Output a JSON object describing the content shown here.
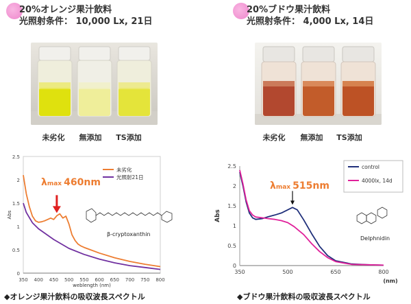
{
  "left": {
    "header_line1": "20%オレンジ果汁飲料",
    "header_line2": "光照射条件： 10,000 Lx, 21日",
    "vial_labels": [
      "未劣化",
      "無添加",
      "TS添加"
    ],
    "chart_data": {
      "type": "line",
      "xlabel": "weblength (nm)",
      "ylabel": "Abs",
      "xlim": [
        350,
        800
      ],
      "ylim": [
        0,
        2.5
      ],
      "x_ticks": [
        350,
        400,
        450,
        500,
        550,
        600,
        650,
        700,
        750,
        800
      ],
      "y_ticks": [
        0,
        0.5,
        1,
        1.5,
        2,
        2.5
      ],
      "series": [
        {
          "name": "未劣化",
          "color": "#ed7d31",
          "x": [
            350,
            360,
            370,
            380,
            390,
            400,
            410,
            420,
            430,
            440,
            450,
            460,
            470,
            480,
            490,
            500,
            510,
            520,
            530,
            540,
            550,
            600,
            650,
            700,
            750,
            800
          ],
          "y": [
            2.1,
            1.7,
            1.42,
            1.22,
            1.12,
            1.09,
            1.1,
            1.12,
            1.15,
            1.18,
            1.15,
            1.23,
            1.27,
            1.18,
            1.22,
            1.05,
            0.82,
            0.7,
            0.62,
            0.58,
            0.55,
            0.43,
            0.33,
            0.25,
            0.19,
            0.14
          ]
        },
        {
          "name": "光照射21日",
          "color": "#7030a0",
          "x": [
            350,
            360,
            380,
            400,
            450,
            500,
            550,
            600,
            650,
            700,
            750,
            800
          ],
          "y": [
            1.5,
            1.3,
            1.08,
            0.95,
            0.72,
            0.53,
            0.4,
            0.3,
            0.22,
            0.16,
            0.12,
            0.08
          ]
        }
      ],
      "annotation_lambda": "λmax",
      "annotation_value": "460nm",
      "annotation_x": 460,
      "compound": "β-cryptoxanthin"
    },
    "caption": "◆オレンジ果汁飲料の吸収波長スペクトル"
  },
  "right": {
    "header_line1": "20%ブドウ果汁飲料",
    "header_line2": "光照射条件： 4,000 Lx, 14日",
    "vial_labels": [
      "未劣化",
      "無添加",
      "TS添加"
    ],
    "chart_data": {
      "type": "line",
      "xlabel": "(nm)",
      "ylabel": "Abs",
      "xlim": [
        350,
        800
      ],
      "ylim": [
        0,
        2.5
      ],
      "x_ticks": [
        350,
        500,
        650,
        800
      ],
      "y_ticks": [
        0,
        0.5,
        1,
        1.5,
        2,
        2.5
      ],
      "series": [
        {
          "name": "control",
          "color": "#1f2f7a",
          "x": [
            350,
            360,
            370,
            380,
            390,
            400,
            420,
            440,
            460,
            480,
            500,
            515,
            530,
            550,
            575,
            600,
            625,
            650,
            700,
            750,
            800
          ],
          "y": [
            2.35,
            2.0,
            1.6,
            1.32,
            1.2,
            1.16,
            1.18,
            1.23,
            1.27,
            1.32,
            1.4,
            1.46,
            1.4,
            1.15,
            0.8,
            0.48,
            0.25,
            0.12,
            0.04,
            0.02,
            0.01
          ]
        },
        {
          "name": "4000lx, 14d",
          "color": "#e0209a",
          "x": [
            350,
            360,
            370,
            380,
            390,
            400,
            420,
            440,
            460,
            480,
            500,
            520,
            550,
            575,
            600,
            625,
            650,
            700,
            750,
            800
          ],
          "y": [
            2.4,
            2.05,
            1.65,
            1.38,
            1.27,
            1.22,
            1.2,
            1.18,
            1.16,
            1.13,
            1.08,
            0.98,
            0.78,
            0.55,
            0.35,
            0.2,
            0.1,
            0.03,
            0.02,
            0.01
          ]
        }
      ],
      "annotation_lambda": "λmax",
      "annotation_value": "515nm",
      "annotation_x": 515,
      "compound": "Delphnidin"
    },
    "caption": "◆ブドウ果汁飲料の吸収波長スペクトル"
  }
}
